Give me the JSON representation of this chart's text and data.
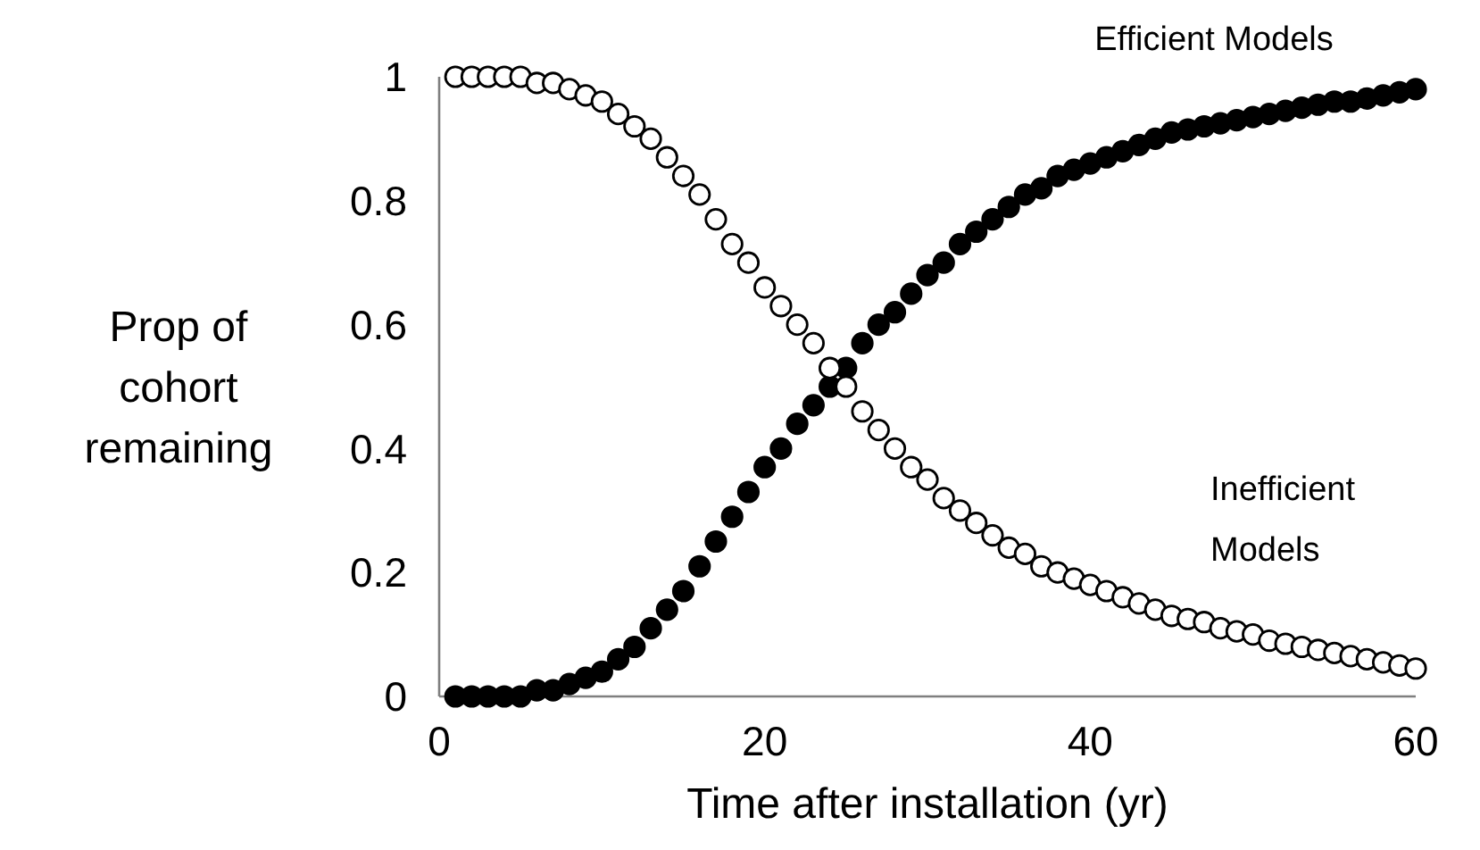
{
  "chart_data": {
    "type": "scatter",
    "xlabel": "Time after installation (yr)",
    "ylabel": "Prop of cohort remaining",
    "xlim": [
      0,
      60
    ],
    "xticks": [
      0,
      20,
      40,
      60
    ],
    "ylim": [
      0,
      1
    ],
    "yticks": [
      0,
      0.2,
      0.4,
      0.6,
      0.8,
      1
    ],
    "grid": false,
    "legend": false,
    "marker": "circle",
    "x": [
      1,
      2,
      3,
      4,
      5,
      6,
      7,
      8,
      9,
      10,
      11,
      12,
      13,
      14,
      15,
      16,
      17,
      18,
      19,
      20,
      21,
      22,
      23,
      24,
      25,
      26,
      27,
      28,
      29,
      30,
      31,
      32,
      33,
      34,
      35,
      36,
      37,
      38,
      39,
      40,
      41,
      42,
      43,
      44,
      45,
      46,
      47,
      48,
      49,
      50,
      51,
      52,
      53,
      54,
      55,
      56,
      57,
      58,
      59,
      60
    ],
    "series": [
      {
        "name": "Efficient Models",
        "color": "#000000",
        "values": [
          0,
          0,
          0,
          0,
          0,
          0.01,
          0.01,
          0.02,
          0.03,
          0.04,
          0.06,
          0.08,
          0.11,
          0.14,
          0.17,
          0.21,
          0.25,
          0.29,
          0.33,
          0.37,
          0.4,
          0.44,
          0.47,
          0.5,
          0.53,
          0.57,
          0.6,
          0.62,
          0.65,
          0.68,
          0.7,
          0.73,
          0.75,
          0.77,
          0.79,
          0.81,
          0.82,
          0.84,
          0.85,
          0.86,
          0.87,
          0.88,
          0.89,
          0.9,
          0.91,
          0.915,
          0.92,
          0.925,
          0.93,
          0.935,
          0.94,
          0.945,
          0.95,
          0.955,
          0.96,
          0.96,
          0.965,
          0.97,
          0.975,
          0.98
        ]
      },
      {
        "name": "Inefficient Models",
        "color": "#ffffff",
        "values": [
          1,
          1,
          1,
          1,
          1,
          0.99,
          0.99,
          0.98,
          0.97,
          0.96,
          0.94,
          0.92,
          0.9,
          0.87,
          0.84,
          0.81,
          0.77,
          0.73,
          0.7,
          0.66,
          0.63,
          0.6,
          0.57,
          0.53,
          0.5,
          0.46,
          0.43,
          0.4,
          0.37,
          0.35,
          0.32,
          0.3,
          0.28,
          0.26,
          0.24,
          0.23,
          0.21,
          0.2,
          0.19,
          0.18,
          0.17,
          0.16,
          0.15,
          0.14,
          0.13,
          0.125,
          0.12,
          0.11,
          0.105,
          0.1,
          0.09,
          0.085,
          0.08,
          0.075,
          0.07,
          0.065,
          0.06,
          0.055,
          0.05,
          0.045
        ]
      }
    ]
  }
}
